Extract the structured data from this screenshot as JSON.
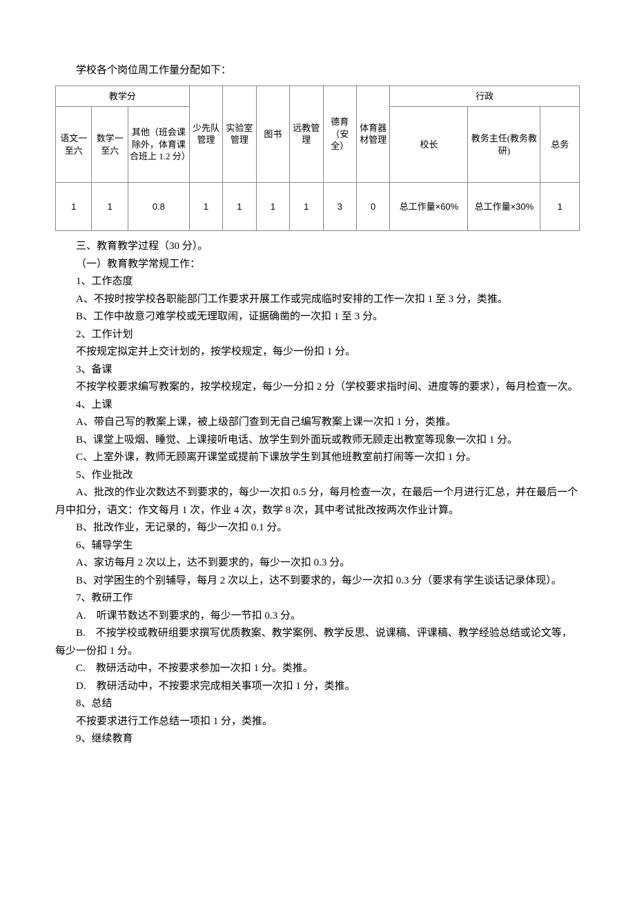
{
  "intro": "学校各个岗位周工作量分配如下：",
  "table": {
    "group1": "教学分",
    "group2": "行政",
    "headers": [
      "语文一至六",
      "数学一至六",
      "其他（班会课除外，体育课合班上 1.2 分）",
      "少先队管理",
      "实验室管理",
      "图书",
      "远教管理",
      "德育（安全）",
      "体育器材管理",
      "校长",
      "教务主任(教务教研)",
      "总务"
    ],
    "values": [
      "1",
      "1",
      "0.8",
      "1",
      "1",
      "1",
      "1",
      "3",
      "0",
      "总工作量×60%",
      "总工作量×30%",
      "1"
    ],
    "colwidths": [
      "6.5%",
      "6.5%",
      "11%",
      "6%",
      "6%",
      "6%",
      "6%",
      "6%",
      "6%",
      "14%",
      "13%",
      "7%"
    ]
  },
  "body": [
    {
      "cls": "section",
      "text": "三、教育教学过程（30 分）。"
    },
    {
      "cls": "section",
      "text": "（一）教育教学常规工作："
    },
    {
      "cls": "item",
      "text": "1、工作态度"
    },
    {
      "cls": "sub",
      "text": "A、不按时按学校各职能部门工作要求开展工作或完成临时安排的工作一次扣 1 至 3 分，类推。",
      "hang": true
    },
    {
      "cls": "sub",
      "text": "B、工作中故意刁难学校或无理取闹，证据确凿的一次扣 1 至 3 分。"
    },
    {
      "cls": "item",
      "text": "2、工作计划"
    },
    {
      "cls": "sub",
      "text": "不按规定拟定并上交计划的，按学校规定，每少一份扣 1 分。"
    },
    {
      "cls": "item",
      "text": "3、备课"
    },
    {
      "cls": "sub",
      "text": "不按学校要求编写教案的，按学校规定，每少一分扣 2 分（学校要求指时间、进度等的要求），每月检查一次。",
      "hang": true
    },
    {
      "cls": "item",
      "text": "4、上课"
    },
    {
      "cls": "sub",
      "text": "A、带自己写的教案上课，被上级部门查到无自己编写教案上课一次扣 1 分，类推。"
    },
    {
      "cls": "sub",
      "text": "B、课堂上吸烟、睡觉、上课接听电话、放学生到外面玩或教师无顾走出教室等现象一次扣 1 分。",
      "hang": true
    },
    {
      "cls": "sub",
      "text": "C、上室外课，教师无顾离开课堂或提前下课放学生到其他班教室前打闹等一次扣 1 分。"
    },
    {
      "cls": "item",
      "text": "5、作业批改"
    },
    {
      "cls": "sub",
      "text": "A、批改的作业次数达不到要求的，每少一次扣 0.5 分，每月检查一次，在最后一个月进行汇总，并在最后一个月中扣分，语文：作文每月 1 次，作业 4 次，数学 8 次，其中考试批改按两次作业计算。",
      "hang": true
    },
    {
      "cls": "sub",
      "text": "B、批改作业，无记录的，每少一次扣 0.1 分。"
    },
    {
      "cls": "item",
      "text": "6、辅导学生"
    },
    {
      "cls": "sub",
      "text": "A、家访每月 2 次以上，达不到要求的，每少一次扣 0.3 分。"
    },
    {
      "cls": "sub",
      "text": "B、对学困生的个别辅导，每月 2 次以上，达不到要求的，每少一次扣 0.3 分（要求有学生谈话记录体现）。",
      "hang": true
    },
    {
      "cls": "item",
      "text": "7、教研工作"
    },
    {
      "cls": "sub",
      "text": "A.　听课节数达不到要求的，每少一节扣 0.3 分。"
    },
    {
      "cls": "sub",
      "text": "B.　不按学校或教研组要求撰写优质教案、教学案例、教学反思、说课稿、评课稿、教学经验总结或论文等，每少一份扣 1 分。",
      "hang": true
    },
    {
      "cls": "sub",
      "text": "C.　教研活动中，不按要求参加一次扣 1 分。类推。"
    },
    {
      "cls": "sub",
      "text": "D.　教研活动中，不按要求完成相关事项一次扣 1 分，类推。"
    },
    {
      "cls": "item",
      "text": "8、总结"
    },
    {
      "cls": "sub",
      "text": "不按要求进行工作总结一项扣 1 分，类推。"
    },
    {
      "cls": "item",
      "text": "9、继续教育"
    }
  ]
}
